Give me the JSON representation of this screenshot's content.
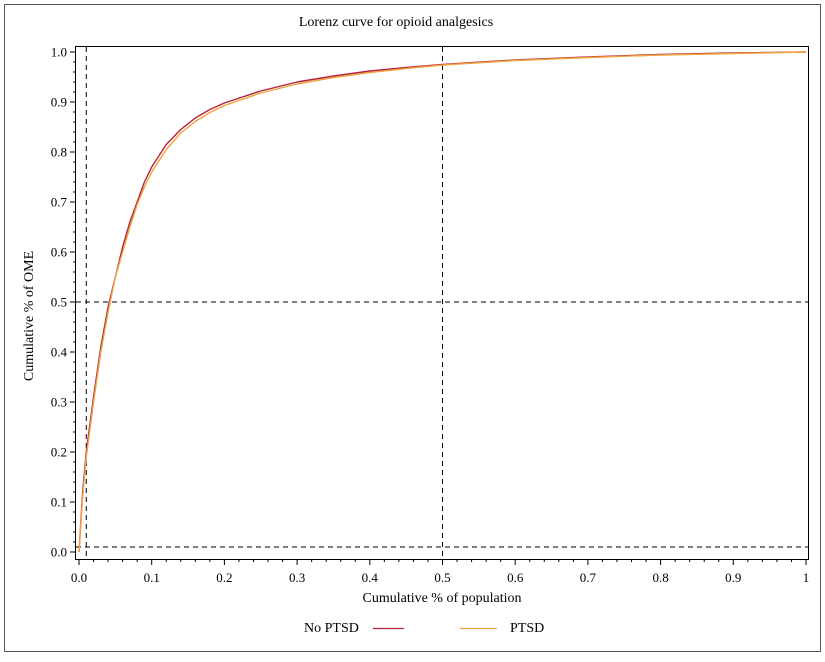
{
  "chart_data": {
    "type": "line",
    "title": "Lorenz curve for opioid analgesics",
    "xlabel": "Cumulative % of population",
    "ylabel": "Cumulative % of OME",
    "xlim": [
      0,
      1
    ],
    "ylim": [
      0,
      1
    ],
    "x_ticks": [
      "0.0",
      "0.1",
      "0.2",
      "0.3",
      "0.4",
      "0.5",
      "0.6",
      "0.7",
      "0.8",
      "0.9",
      "1"
    ],
    "y_ticks": [
      "0.0",
      "0.1",
      "0.2",
      "0.3",
      "0.4",
      "0.5",
      "0.6",
      "0.7",
      "0.8",
      "0.9",
      "1.0"
    ],
    "grid": false,
    "legend_position": "bottom",
    "reference_lines": [
      {
        "orientation": "vertical",
        "x": 0.01
      },
      {
        "orientation": "vertical",
        "x": 0.5
      },
      {
        "orientation": "horizontal",
        "y": 0.5
      },
      {
        "orientation": "horizontal",
        "y": 0.01
      }
    ],
    "series": [
      {
        "name": "No PTSD",
        "color": "#b0223c",
        "x": [
          0,
          0.005,
          0.01,
          0.02,
          0.03,
          0.04,
          0.05,
          0.06,
          0.07,
          0.08,
          0.09,
          0.1,
          0.12,
          0.14,
          0.16,
          0.18,
          0.2,
          0.25,
          0.3,
          0.35,
          0.4,
          0.45,
          0.5,
          0.6,
          0.7,
          0.8,
          0.9,
          1.0
        ],
        "y": [
          0,
          0.12,
          0.2,
          0.31,
          0.41,
          0.49,
          0.55,
          0.61,
          0.66,
          0.7,
          0.74,
          0.77,
          0.815,
          0.845,
          0.868,
          0.885,
          0.898,
          0.922,
          0.94,
          0.952,
          0.962,
          0.969,
          0.975,
          0.984,
          0.99,
          0.995,
          0.998,
          1.0
        ]
      },
      {
        "name": "PTSD",
        "color": "#f0a23c",
        "x": [
          0,
          0.005,
          0.01,
          0.02,
          0.03,
          0.04,
          0.05,
          0.06,
          0.07,
          0.08,
          0.09,
          0.1,
          0.12,
          0.14,
          0.16,
          0.18,
          0.2,
          0.25,
          0.3,
          0.35,
          0.4,
          0.45,
          0.5,
          0.6,
          0.7,
          0.8,
          0.9,
          1.0
        ],
        "y": [
          0,
          0.11,
          0.19,
          0.3,
          0.4,
          0.48,
          0.55,
          0.6,
          0.65,
          0.695,
          0.73,
          0.76,
          0.805,
          0.838,
          0.861,
          0.879,
          0.893,
          0.918,
          0.936,
          0.949,
          0.959,
          0.967,
          0.974,
          0.983,
          0.989,
          0.994,
          0.997,
          1.0
        ]
      }
    ]
  }
}
